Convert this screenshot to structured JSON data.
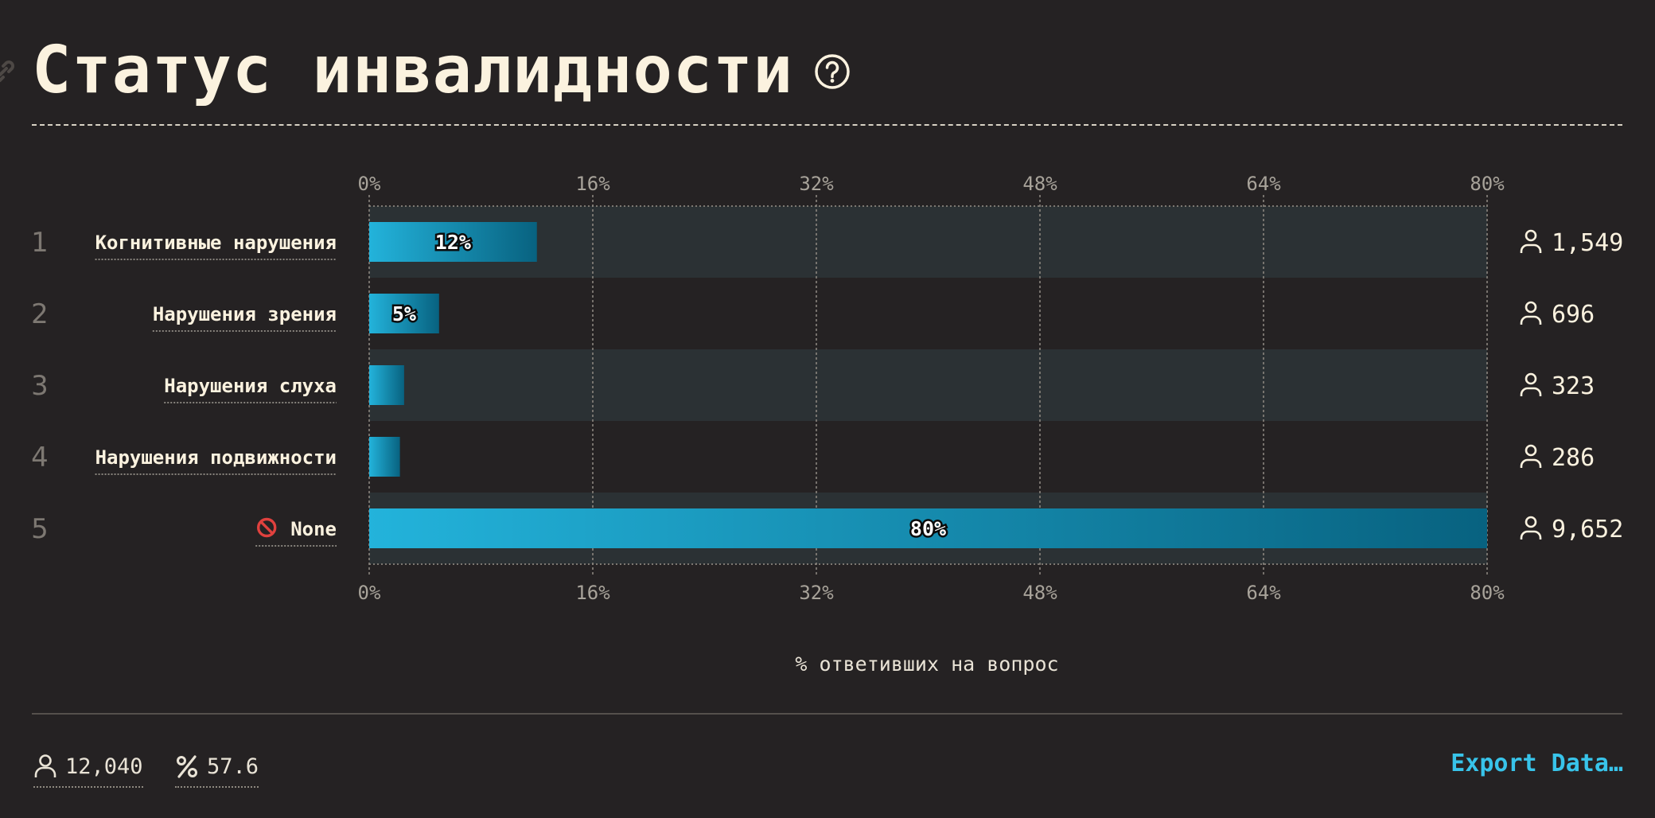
{
  "header": {
    "title": "Статус инвалидности"
  },
  "icons": {
    "help": "question-circle-icon",
    "link": "link-icon",
    "person": "person-icon",
    "percent": "percent-icon"
  },
  "colors": {
    "background": "#252223",
    "bar_start": "#23b3db",
    "bar_end": "#086280",
    "accent": "#38c4ea",
    "stripe": "#2b3134"
  },
  "chart_data": {
    "type": "bar",
    "orientation": "horizontal",
    "categories": [
      "Когнитивные нарушения",
      "Нарушения зрения",
      "Нарушения слуха",
      "Нарушения подвижности",
      "None"
    ],
    "ranks": [
      "1",
      "2",
      "3",
      "4",
      "5"
    ],
    "values": [
      12,
      5,
      2.5,
      2.2,
      80
    ],
    "value_labels": [
      "12%",
      "5%",
      "",
      "",
      "80%"
    ],
    "counts": [
      "1,549",
      "696",
      "323",
      "286",
      "9,652"
    ],
    "xlim": [
      0,
      80
    ],
    "ticks": [
      0,
      16,
      32,
      48,
      64,
      80
    ],
    "tick_labels": [
      "0%",
      "16%",
      "32%",
      "48%",
      "64%",
      "80%"
    ],
    "xlabel": "% ответивших на вопрос",
    "grid": true
  },
  "footer": {
    "respondents": "12,040",
    "percent": "57.6",
    "export_label": "Export Data…"
  }
}
